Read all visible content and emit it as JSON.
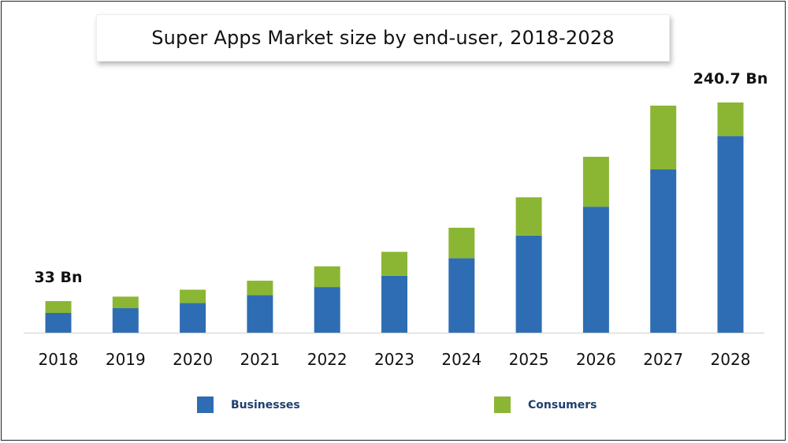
{
  "colors": {
    "businesses": "#2e6db3",
    "consumers": "#8bb634",
    "baseline": "#cfcfcf"
  },
  "chart_data": {
    "type": "bar",
    "stacked": true,
    "title": "Super Apps Market size by end-user, 2018-2028",
    "categories": [
      "2018",
      "2019",
      "2020",
      "2021",
      "2022",
      "2023",
      "2024",
      "2025",
      "2026",
      "2027",
      "2028"
    ],
    "series": [
      {
        "name": "Businesses",
        "values": [
          20.6,
          25.6,
          31.0,
          39.2,
          47.7,
          59.5,
          77.8,
          101.4,
          131.7,
          170.6,
          205.6
        ]
      },
      {
        "name": "Consumers",
        "values": [
          12.4,
          12.1,
          13.9,
          15.1,
          21.6,
          25.0,
          31.9,
          40.1,
          52.2,
          66.8,
          35.1
        ]
      }
    ],
    "totals_visible": {
      "2018": 33,
      "2028": 240.7
    },
    "ylim": [
      0,
      245
    ],
    "xlabel": "",
    "ylabel": "",
    "grid": false,
    "legend": "bottom",
    "annotations": [
      {
        "category": "2018",
        "text": "33 Bn"
      },
      {
        "category": "2028",
        "text": "240.7 Bn"
      }
    ]
  }
}
